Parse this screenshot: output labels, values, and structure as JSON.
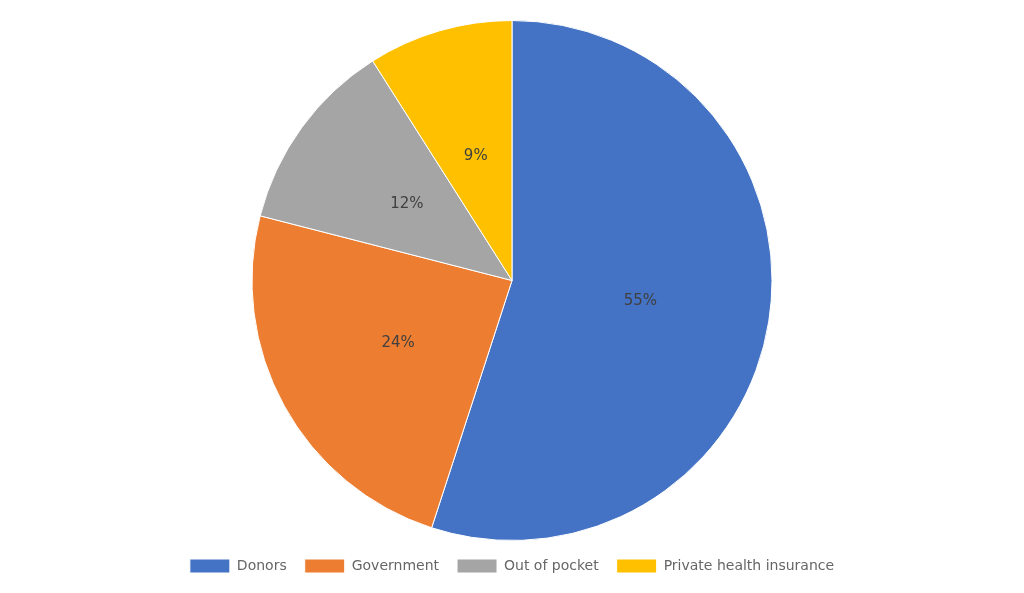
{
  "chart_data": {
    "type": "pie",
    "categories": [
      "Donors",
      "Government",
      "Out of pocket",
      "Private health insurance"
    ],
    "values": [
      55,
      24,
      12,
      9
    ],
    "value_labels": [
      "55%",
      "24%",
      "12%",
      "9%"
    ],
    "colors": [
      "#4472C4",
      "#ED7D31",
      "#A5A5A5",
      "#FFC000"
    ],
    "data_labels": true,
    "legend": "bottom"
  }
}
